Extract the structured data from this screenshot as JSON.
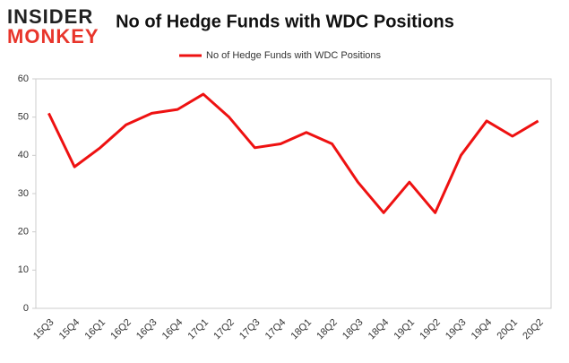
{
  "logo": {
    "line1": "INSIDER",
    "line2": "MONKEY"
  },
  "chart_data": {
    "type": "line",
    "title": "No of Hedge Funds with WDC Positions",
    "categories": [
      "15Q3",
      "15Q4",
      "16Q1",
      "16Q2",
      "16Q3",
      "16Q4",
      "17Q1",
      "17Q2",
      "17Q3",
      "17Q4",
      "18Q1",
      "18Q2",
      "18Q3",
      "18Q4",
      "19Q1",
      "19Q2",
      "19Q3",
      "19Q4",
      "20Q1",
      "20Q2"
    ],
    "series": [
      {
        "name": "No of Hedge Funds with WDC Positions",
        "color": "#ee1111",
        "values": [
          51,
          37,
          42,
          48,
          51,
          52,
          56,
          50,
          42,
          43,
          46,
          43,
          33,
          25,
          33,
          25,
          40,
          49,
          45,
          49
        ]
      }
    ],
    "ylim": [
      0,
      60
    ],
    "yticks": [
      0,
      10,
      20,
      30,
      40,
      50,
      60
    ],
    "legend": "top"
  }
}
